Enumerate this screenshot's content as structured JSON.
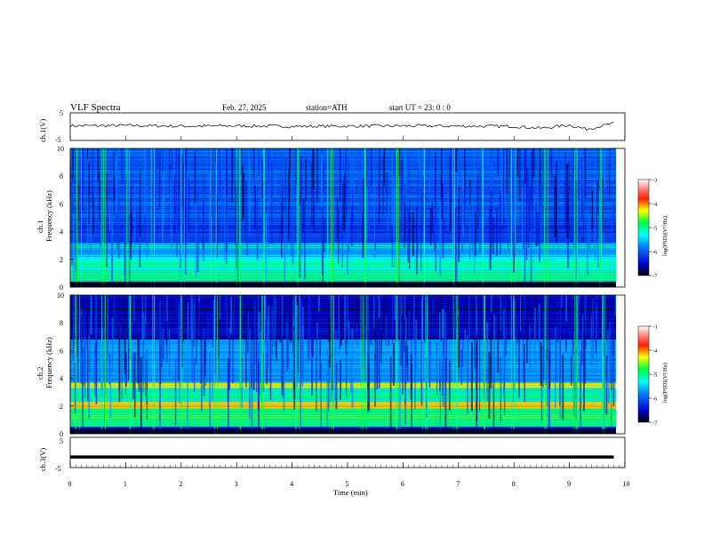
{
  "header": {
    "title": "VLF  Spectra",
    "date": "Feb. 27, 2025",
    "station": "station=ATH",
    "start": "start  UT  =   23: 0   : 0"
  },
  "axes": {
    "xlabel": "Time  (min)",
    "ch1_ylabel": "ch.1(V)",
    "ch3_ylabel": "ch.3(V)",
    "spec1_ylabel": "ch.1",
    "spec2_ylabel": "ch.2",
    "freq_label": "Frequency  (kHz)",
    "cbar_label": "log(PSD)(V²/Hz)"
  },
  "chart_data": [
    {
      "type": "line",
      "name": "ch.1 waveform",
      "ylabel": "ch.1(V)",
      "xlim": [
        0,
        10
      ],
      "ylim": [
        -5,
        5
      ],
      "yticks": [
        5,
        -5
      ],
      "x": [
        0,
        1,
        2,
        3,
        4,
        5,
        6,
        7,
        8,
        8.5,
        9,
        9.3,
        9.8
      ],
      "y": [
        0.3,
        0.4,
        0.2,
        0.3,
        0.1,
        0.2,
        0.3,
        0.2,
        0.1,
        -0.6,
        0.6,
        -0.9,
        1.2
      ]
    },
    {
      "type": "heatmap",
      "name": "ch.1 spectrogram",
      "ylabel": "Frequency  (kHz)",
      "xlim": [
        0,
        10
      ],
      "ylim": [
        0,
        10
      ],
      "yticks": [
        0,
        2,
        4,
        6,
        8,
        10
      ],
      "colorbar": {
        "label": "log(PSD)(V²/Hz)",
        "range": [
          -7,
          -3
        ],
        "ticks": [
          -3,
          -4,
          -5,
          -6,
          -7
        ]
      },
      "bands_khz": [
        {
          "f_lo": 0.0,
          "f_hi": 0.4,
          "log_psd": -6.6
        },
        {
          "f_lo": 0.4,
          "f_hi": 1.2,
          "log_psd": -5.0
        },
        {
          "f_lo": 1.2,
          "f_hi": 2.2,
          "log_psd": -5.3
        },
        {
          "f_lo": 2.2,
          "f_hi": 3.2,
          "log_psd": -5.6
        },
        {
          "f_lo": 3.2,
          "f_hi": 5.0,
          "log_psd": -6.2
        },
        {
          "f_lo": 5.0,
          "f_hi": 10.0,
          "log_psd": -6.0
        }
      ],
      "spherics_times_min": [
        0.15,
        0.62,
        1.05,
        1.52,
        2.0,
        2.6,
        3.05,
        3.5,
        4.1,
        4.7,
        5.3,
        5.9,
        6.4,
        6.95,
        7.45,
        8.0,
        8.6,
        9.15,
        9.6
      ]
    },
    {
      "type": "heatmap",
      "name": "ch.2 spectrogram",
      "ylabel": "Frequency  (kHz)",
      "xlim": [
        0,
        10
      ],
      "ylim": [
        0,
        10
      ],
      "yticks": [
        0,
        2,
        4,
        6,
        8,
        10
      ],
      "colorbar": {
        "label": "log(PSD)(V²/Hz)",
        "range": [
          -7,
          -3
        ],
        "ticks": [
          -3,
          -4,
          -5,
          -6,
          -7
        ]
      },
      "bands_khz": [
        {
          "f_lo": 0.0,
          "f_hi": 0.5,
          "log_psd": -6.5
        },
        {
          "f_lo": 0.5,
          "f_hi": 1.8,
          "log_psd": -4.9
        },
        {
          "f_lo": 1.8,
          "f_hi": 2.3,
          "log_psd": -4.2
        },
        {
          "f_lo": 2.3,
          "f_hi": 3.3,
          "log_psd": -5.1
        },
        {
          "f_lo": 3.3,
          "f_hi": 3.7,
          "log_psd": -4.3
        },
        {
          "f_lo": 3.7,
          "f_hi": 6.8,
          "log_psd": -5.7
        },
        {
          "f_lo": 6.8,
          "f_hi": 10.0,
          "log_psd": -6.6
        }
      ],
      "spherics_times_min": [
        0.15,
        0.62,
        1.05,
        1.52,
        2.0,
        2.6,
        3.05,
        3.5,
        4.1,
        4.7,
        5.3,
        5.9,
        6.4,
        6.95,
        7.45,
        8.0,
        8.6,
        9.15,
        9.6
      ]
    },
    {
      "type": "line",
      "name": "ch.3 waveform",
      "ylabel": "ch.3(V)",
      "xlim": [
        0,
        10
      ],
      "ylim": [
        -5,
        5
      ],
      "yticks": [
        5,
        -5
      ],
      "xticks": [
        0,
        1,
        2,
        3,
        4,
        5,
        6,
        7,
        8,
        9,
        10
      ],
      "xlabel": "Time  (min)",
      "x": [
        0,
        9.8
      ],
      "y": [
        -1.5,
        -1.5
      ]
    }
  ],
  "colors": {
    "jet": [
      "#000080",
      "#0000ff",
      "#00a0ff",
      "#00ffff",
      "#80ff80",
      "#ffff00",
      "#ff8000",
      "#ff0000",
      "#ffffff"
    ]
  }
}
